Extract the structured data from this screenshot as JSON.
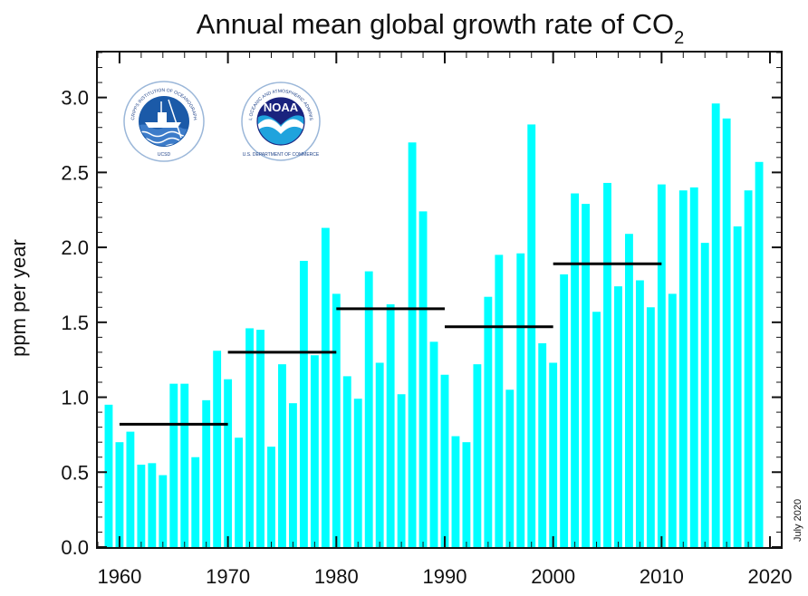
{
  "chart_data": {
    "type": "bar",
    "title": "Annual mean global growth rate of CO",
    "title_subscript": "2",
    "ylabel": "ppm per year",
    "xlabel": "",
    "ylim": [
      0,
      3.3
    ],
    "xlim": [
      1958,
      2021
    ],
    "x_ticks": [
      1960,
      1970,
      1980,
      1990,
      2000,
      2010,
      2020
    ],
    "x_tick_labels": [
      "1960",
      "1970",
      "1980",
      "1990",
      "2000",
      "2010",
      "2020"
    ],
    "y_ticks": [
      0.0,
      0.5,
      1.0,
      1.5,
      2.0,
      2.5,
      3.0
    ],
    "y_tick_labels": [
      "0.0",
      "0.5",
      "1.0",
      "1.5",
      "2.0",
      "2.5",
      "3.0"
    ],
    "bar_color": "#00ffff",
    "years": [
      1959,
      1960,
      1961,
      1962,
      1963,
      1964,
      1965,
      1966,
      1967,
      1968,
      1969,
      1970,
      1971,
      1972,
      1973,
      1974,
      1975,
      1976,
      1977,
      1978,
      1979,
      1980,
      1981,
      1982,
      1983,
      1984,
      1985,
      1986,
      1987,
      1988,
      1989,
      1990,
      1991,
      1992,
      1993,
      1994,
      1995,
      1996,
      1997,
      1998,
      1999,
      2000,
      2001,
      2002,
      2003,
      2004,
      2005,
      2006,
      2007,
      2008,
      2009,
      2010,
      2011,
      2012,
      2013,
      2014,
      2015,
      2016,
      2017,
      2018,
      2019
    ],
    "values": [
      0.95,
      0.7,
      0.77,
      0.55,
      0.56,
      0.48,
      1.09,
      1.09,
      0.6,
      0.98,
      1.31,
      1.12,
      0.73,
      1.46,
      1.45,
      0.67,
      1.22,
      0.96,
      1.91,
      1.28,
      2.13,
      1.69,
      1.14,
      0.99,
      1.84,
      1.23,
      1.62,
      1.02,
      2.7,
      2.24,
      1.37,
      1.15,
      0.74,
      0.7,
      1.22,
      1.67,
      1.95,
      1.05,
      1.96,
      2.82,
      1.36,
      1.23,
      1.82,
      2.36,
      2.29,
      1.57,
      2.43,
      1.74,
      2.09,
      1.78,
      1.6,
      2.42,
      1.69,
      2.38,
      2.4,
      2.03,
      2.96,
      2.86,
      2.14,
      2.38,
      2.57
    ],
    "decadal_means": [
      {
        "start": 1960,
        "end": 1970,
        "value": 0.82
      },
      {
        "start": 1970,
        "end": 1980,
        "value": 1.3
      },
      {
        "start": 1980,
        "end": 1990,
        "value": 1.59
      },
      {
        "start": 1990,
        "end": 2000,
        "value": 1.47
      },
      {
        "start": 2000,
        "end": 2010,
        "value": 1.89
      }
    ],
    "decadal_line_color": "#000000",
    "grid": false,
    "annotation": "July 2020"
  },
  "logos": {
    "sio": {
      "label": "Scripps Institution of Oceanography logo",
      "ring_text": "SCRIPPS INSTITUTION OF OCEANOGRAPHY",
      "bottom_text": "UCSD",
      "color": "#1b5aa8"
    },
    "noaa": {
      "label": "NOAA logo",
      "word": "NOAA",
      "ring_text": "NATIONAL OCEANIC AND ATMOSPHERIC ADMINISTRATION",
      "bottom_text": "U.S. DEPARTMENT OF COMMERCE",
      "color": "#1a237e"
    }
  }
}
